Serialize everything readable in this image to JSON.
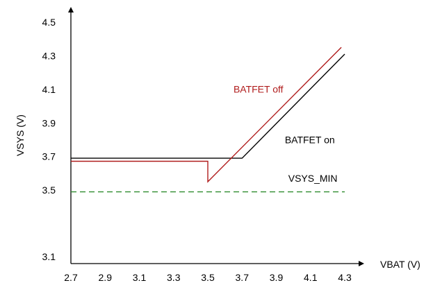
{
  "chart_data": {
    "type": "line",
    "xlabel": "VBAT (V)",
    "ylabel": "VSYS (V)",
    "xlim": [
      2.7,
      4.3
    ],
    "ylim": [
      3.1,
      4.5
    ],
    "x_ticks": [
      "2.7",
      "2.9",
      "3.1",
      "3.3",
      "3.5",
      "3.7",
      "3.9",
      "4.1",
      "4.3"
    ],
    "y_ticks": [
      "3.1",
      "3.5",
      "3.7",
      "3.9",
      "4.1",
      "4.3",
      "4.5"
    ],
    "grid": false,
    "series": [
      {
        "name": "BATFET on",
        "color": "#000000",
        "dash": false,
        "points": [
          [
            2.7,
            3.69
          ],
          [
            3.7,
            3.69
          ],
          [
            4.3,
            4.31
          ]
        ]
      },
      {
        "name": "BATFET off",
        "color": "#b01c1c",
        "dash": false,
        "points": [
          [
            2.7,
            3.672
          ],
          [
            3.5,
            3.672
          ],
          [
            3.5,
            3.55
          ],
          [
            4.28,
            4.35
          ]
        ]
      },
      {
        "name": "VSYS_MIN",
        "color": "#2e8b2e",
        "dash": true,
        "points": [
          [
            2.7,
            3.49
          ],
          [
            4.3,
            3.49
          ]
        ]
      }
    ],
    "annotations": [
      {
        "text": "BATFET off",
        "x": 3.65,
        "y": 4.08,
        "color": "#b01c1c"
      },
      {
        "text": "BATFET on",
        "x": 3.95,
        "y": 3.78,
        "color": "#000000"
      },
      {
        "text": "VSYS_MIN",
        "x": 3.97,
        "y": 3.55,
        "color": "#000000"
      }
    ]
  }
}
